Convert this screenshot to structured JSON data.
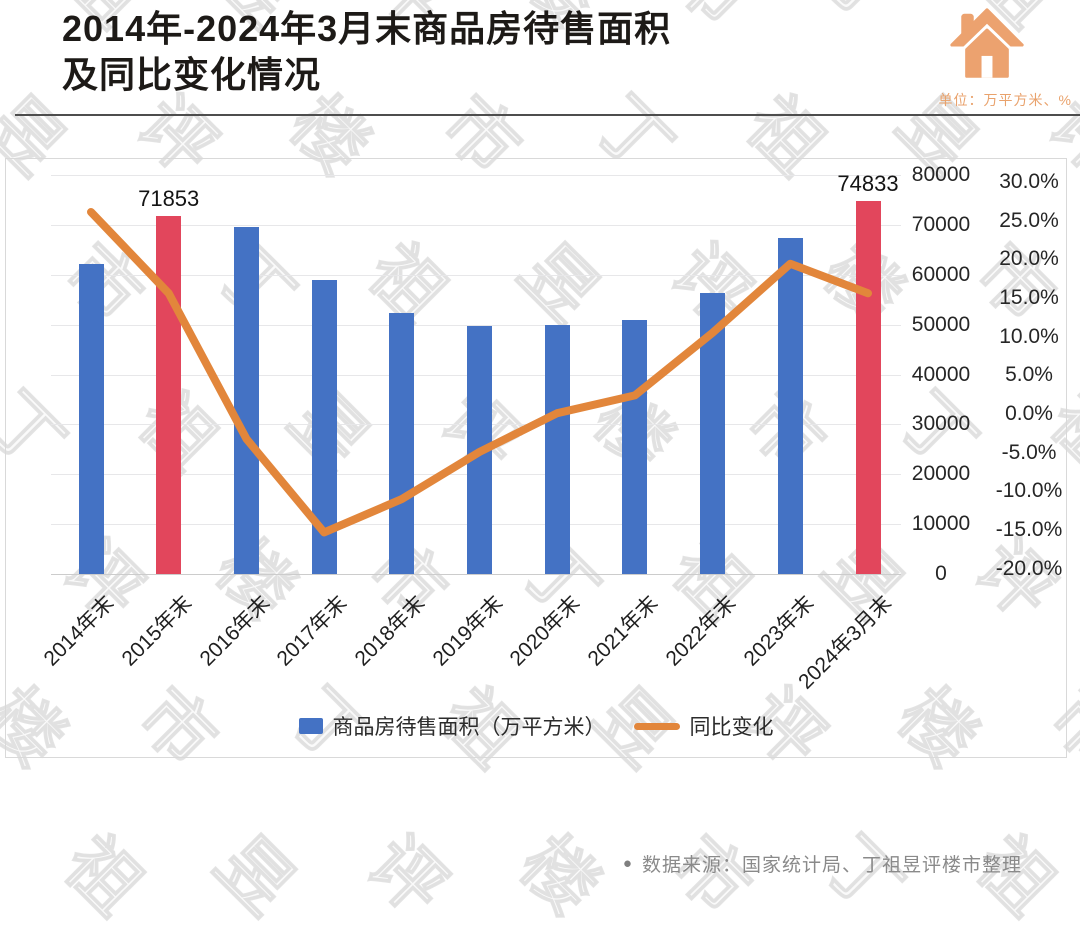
{
  "header": {
    "title_line1": "2014年-2024年3月末商品房待售面积",
    "title_line2": "及同比变化情况",
    "unit_label": "单位：万平方米、%"
  },
  "chart_data": {
    "type": "bar",
    "title": "2014年-2024年3月末商品房待售面积及同比变化情况",
    "categories": [
      "2014年末",
      "2015年末",
      "2016年末",
      "2017年末",
      "2018年末",
      "2019年末",
      "2020年末",
      "2021年末",
      "2022年末",
      "2023年末",
      "2024年3月末"
    ],
    "series": [
      {
        "name": "商品房待售面积（万平方米）",
        "type": "bar",
        "axis": "value",
        "values": [
          62169,
          71853,
          69539,
          58923,
          52414,
          49821,
          49850,
          51023,
          56366,
          67295,
          74833
        ],
        "highlight_indices": [
          1,
          10
        ],
        "point_labels": [
          {
            "index": 1,
            "text": "71853"
          },
          {
            "index": 10,
            "text": "74833"
          }
        ]
      },
      {
        "name": "同比变化",
        "type": "line",
        "axis": "percent",
        "values": [
          26.1,
          15.6,
          -3.2,
          -15.3,
          -11.0,
          -4.9,
          0.1,
          2.4,
          10.5,
          19.4,
          15.6
        ]
      }
    ],
    "value_axis": {
      "min": 0,
      "max": 80000,
      "position": "right",
      "ticks": [
        {
          "value": 80000,
          "label": "80000"
        },
        {
          "value": 70000,
          "label": "70000"
        },
        {
          "value": 60000,
          "label": "60000"
        },
        {
          "value": 50000,
          "label": "50000"
        },
        {
          "value": 40000,
          "label": "40000"
        },
        {
          "value": 30000,
          "label": "30000"
        },
        {
          "value": 20000,
          "label": "20000"
        },
        {
          "value": 10000,
          "label": "10000"
        },
        {
          "value": 0,
          "label": "0"
        }
      ]
    },
    "percent_axis": {
      "min": -20,
      "max": 30,
      "position": "right",
      "ticks": [
        {
          "value": 30,
          "label": "30.0%"
        },
        {
          "value": 25,
          "label": "25.0%"
        },
        {
          "value": 20,
          "label": "20.0%"
        },
        {
          "value": 15,
          "label": "15.0%"
        },
        {
          "value": 10,
          "label": "10.0%"
        },
        {
          "value": 5,
          "label": "5.0%"
        },
        {
          "value": 0,
          "label": "0.0%"
        },
        {
          "value": -5,
          "label": "-5.0%"
        },
        {
          "value": -10,
          "label": "-10.0%"
        },
        {
          "value": -15,
          "label": "-15.0%"
        },
        {
          "value": -20,
          "label": "-20.0%"
        }
      ]
    },
    "legend_position": "bottom",
    "grid": true,
    "colors": {
      "bar": "#4472C4",
      "bar_highlight": "#E2465C",
      "line": "#E2863B",
      "brand_orange": "#ECA26F",
      "title_text": "#1d1a17",
      "axis_text": "#262626",
      "source_text": "#8a8a8a"
    }
  },
  "footer": {
    "bullet": "●",
    "source": "数据来源：国家统计局、丁祖昱评楼市整理"
  },
  "watermark": {
    "text": "丁祖昱评楼市"
  }
}
